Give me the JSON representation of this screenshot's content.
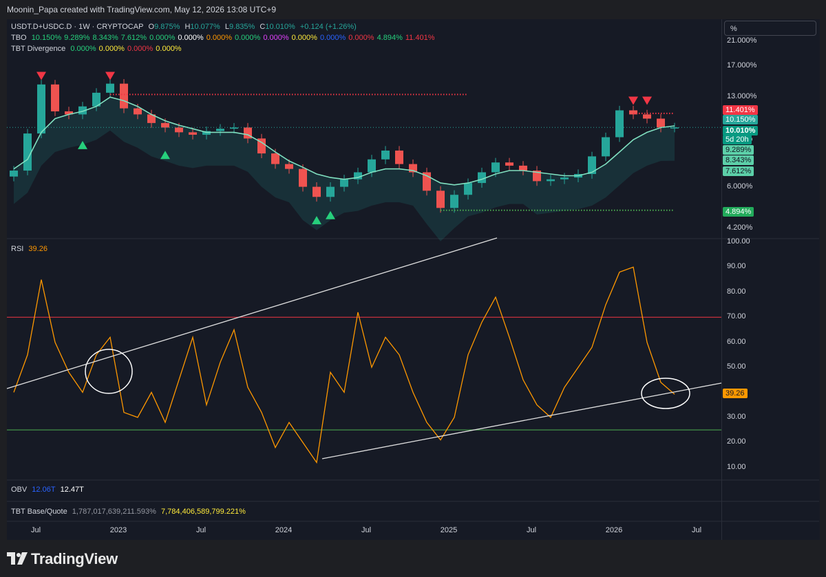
{
  "credit": "Moonin_Papa created with TradingView.com, May 12, 2026 13:08 UTC+9",
  "symbol_line": {
    "symbol": "USDT.D+USDC.D · 1W · CRYPTOCAP",
    "open_label": "O",
    "open": "9.875%",
    "high_label": "H",
    "high": "10.077%",
    "low_label": "L",
    "low": "9.835%",
    "close_label": "C",
    "close": "10.010%",
    "change": "+0.124 (+1.26%)"
  },
  "tbo_line": {
    "name": "TBO",
    "values": [
      {
        "text": "10.150%",
        "color": "#26d07c"
      },
      {
        "text": "9.289%",
        "color": "#26d07c"
      },
      {
        "text": "8.343%",
        "color": "#26d07c"
      },
      {
        "text": "7.612%",
        "color": "#26d07c"
      },
      {
        "text": "0.000%",
        "color": "#26d07c"
      },
      {
        "text": "0.000%",
        "color": "#ffffff"
      },
      {
        "text": "0.000%",
        "color": "#ff9800"
      },
      {
        "text": "0.000%",
        "color": "#26d07c"
      },
      {
        "text": "0.000%",
        "color": "#e040fb"
      },
      {
        "text": "0.000%",
        "color": "#ffeb3b"
      },
      {
        "text": "0.000%",
        "color": "#2962ff"
      },
      {
        "text": "0.000%",
        "color": "#f23645"
      },
      {
        "text": "4.894%",
        "color": "#26d07c"
      },
      {
        "text": "11.401%",
        "color": "#f23645"
      }
    ]
  },
  "div_line": {
    "name": "TBT Divergence",
    "values": [
      {
        "text": "0.000%",
        "color": "#26d07c"
      },
      {
        "text": "0.000%",
        "color": "#ffeb3b"
      },
      {
        "text": "0.000%",
        "color": "#f23645"
      },
      {
        "text": "0.000%",
        "color": "#ffeb3b"
      }
    ]
  },
  "rsi_legend": {
    "name": "RSI",
    "value": "39.26"
  },
  "obv_legend": {
    "name": "OBV",
    "v1": "12.06T",
    "v2": "12.47T"
  },
  "base_quote_legend": {
    "name": "TBT Base/Quote",
    "v1": "1,787,017,639,211.593%",
    "v2": "7,784,406,589,799.221%"
  },
  "scale_mode": "%",
  "price_axis": [
    "21.000%",
    "17.000%",
    "13.000%",
    "9.000%",
    "6.000%",
    "4.200%"
  ],
  "price_tags": [
    {
      "text": "11.401%",
      "bg": "#f23645",
      "color": "#ffffff"
    },
    {
      "text": "10.150%",
      "bg": "#26a69a",
      "color": "#ffffff"
    },
    {
      "text": "10.010%",
      "bg": "#089981",
      "color": "#ffffff",
      "bold": true
    },
    {
      "text": "5d 20h",
      "bg": "#089981",
      "color": "#ffffff"
    },
    {
      "text": "9.289%",
      "bg": "#5ccfa8",
      "color": "#131722"
    },
    {
      "text": "8.343%",
      "bg": "#5ccfa8",
      "color": "#131722"
    },
    {
      "text": "7.612%",
      "bg": "#5ccfa8",
      "color": "#131722"
    },
    {
      "text": "4.894%",
      "bg": "#22ab5b",
      "color": "#ffffff"
    }
  ],
  "rsi_axis": [
    "100.00",
    "90.00",
    "80.00",
    "70.00",
    "60.00",
    "50.00",
    "40.00",
    "30.00",
    "20.00",
    "10.00"
  ],
  "rsi_tag": {
    "text": "39.26",
    "bg": "#ff9800",
    "color": "#131722"
  },
  "time_axis": [
    "Jul",
    "2023",
    "Jul",
    "2024",
    "Jul",
    "2025",
    "Jul",
    "2026",
    "Jul"
  ],
  "logo": "TradingView",
  "colors": {
    "up": "#26a69a",
    "down": "#ef5350",
    "rsi": "#ff9800",
    "ob": "#f23645",
    "os": "#4caf50",
    "ema_fast": "#80e0c0",
    "ema_slow": "#f48fb1",
    "res": "#f23645",
    "sup": "#4caf50"
  },
  "chart_data": [
    {
      "type": "candlestick",
      "title": "USDT.D+USDC.D · 1W · CRYPTOCAP",
      "ylabel": "",
      "y_scale": "log",
      "ylim": [
        4.0,
        23.0
      ],
      "x_range": [
        "2022-05",
        "2026-08"
      ],
      "x": [
        "2022-05",
        "2022-06",
        "2022-07",
        "2022-08",
        "2022-09",
        "2022-10",
        "2022-11",
        "2022-12",
        "2023-01",
        "2023-02",
        "2023-03",
        "2023-04",
        "2023-05",
        "2023-06",
        "2023-07",
        "2023-08",
        "2023-09",
        "2023-10",
        "2023-11",
        "2023-12",
        "2024-01",
        "2024-02",
        "2024-03",
        "2024-04",
        "2024-05",
        "2024-06",
        "2024-07",
        "2024-08",
        "2024-09",
        "2024-10",
        "2024-11",
        "2024-12",
        "2025-01",
        "2025-02",
        "2025-03",
        "2025-04",
        "2025-05",
        "2025-06",
        "2025-07",
        "2025-08",
        "2025-09",
        "2025-10",
        "2025-11",
        "2025-12",
        "2026-01",
        "2026-02",
        "2026-03",
        "2026-04",
        "2026-05"
      ],
      "close": [
        6.9,
        9.5,
        14.5,
        11.5,
        11.2,
        12.0,
        13.5,
        14.6,
        11.8,
        11.2,
        10.4,
        10.0,
        9.6,
        9.4,
        9.7,
        9.9,
        10.0,
        9.1,
        8.0,
        7.3,
        7.0,
        6.0,
        5.5,
        6.0,
        6.4,
        6.8,
        7.6,
        8.2,
        7.3,
        6.8,
        5.8,
        5.0,
        5.6,
        6.2,
        6.8,
        7.4,
        7.2,
        6.9,
        6.3,
        6.4,
        6.5,
        6.7,
        7.8,
        9.2,
        11.6,
        11.2,
        10.8,
        10.0,
        10.01
      ],
      "series": [
        {
          "name": "TBO",
          "type": "line",
          "values": [
            7.0,
            7.6,
            9.6,
            10.8,
            11.2,
            11.5,
            12.0,
            13.0,
            12.6,
            12.0,
            11.2,
            10.6,
            10.2,
            9.9,
            9.6,
            9.6,
            9.6,
            9.4,
            8.8,
            8.1,
            7.5,
            7.1,
            6.7,
            6.5,
            6.4,
            6.5,
            6.8,
            7.0,
            7.0,
            6.9,
            6.6,
            6.2,
            6.1,
            6.2,
            6.4,
            6.7,
            6.9,
            6.9,
            6.8,
            6.7,
            6.6,
            6.6,
            6.8,
            7.3,
            8.1,
            9.0,
            9.6,
            10.0,
            10.15
          ]
        }
      ]
    },
    {
      "type": "line",
      "title": "RSI",
      "ylim": [
        5,
        100
      ],
      "levels": [
        70,
        25
      ],
      "x": [
        "2022-05",
        "2022-06",
        "2022-07",
        "2022-08",
        "2022-09",
        "2022-10",
        "2022-11",
        "2022-12",
        "2023-01",
        "2023-02",
        "2023-03",
        "2023-04",
        "2023-05",
        "2023-06",
        "2023-07",
        "2023-08",
        "2023-09",
        "2023-10",
        "2023-11",
        "2023-12",
        "2024-01",
        "2024-02",
        "2024-03",
        "2024-04",
        "2024-05",
        "2024-06",
        "2024-07",
        "2024-08",
        "2024-09",
        "2024-10",
        "2024-11",
        "2024-12",
        "2025-01",
        "2025-02",
        "2025-03",
        "2025-04",
        "2025-05",
        "2025-06",
        "2025-07",
        "2025-08",
        "2025-09",
        "2025-10",
        "2025-11",
        "2025-12",
        "2026-01",
        "2026-02",
        "2026-03",
        "2026-04",
        "2026-05"
      ],
      "values": [
        40,
        55,
        85,
        60,
        48,
        40,
        55,
        62,
        32,
        30,
        40,
        28,
        45,
        62,
        35,
        52,
        65,
        42,
        32,
        18,
        28,
        20,
        12,
        48,
        40,
        72,
        50,
        62,
        55,
        40,
        28,
        21,
        30,
        55,
        68,
        78,
        62,
        45,
        35,
        30,
        42,
        50,
        58,
        75,
        88,
        90,
        60,
        44,
        39.26
      ]
    }
  ]
}
